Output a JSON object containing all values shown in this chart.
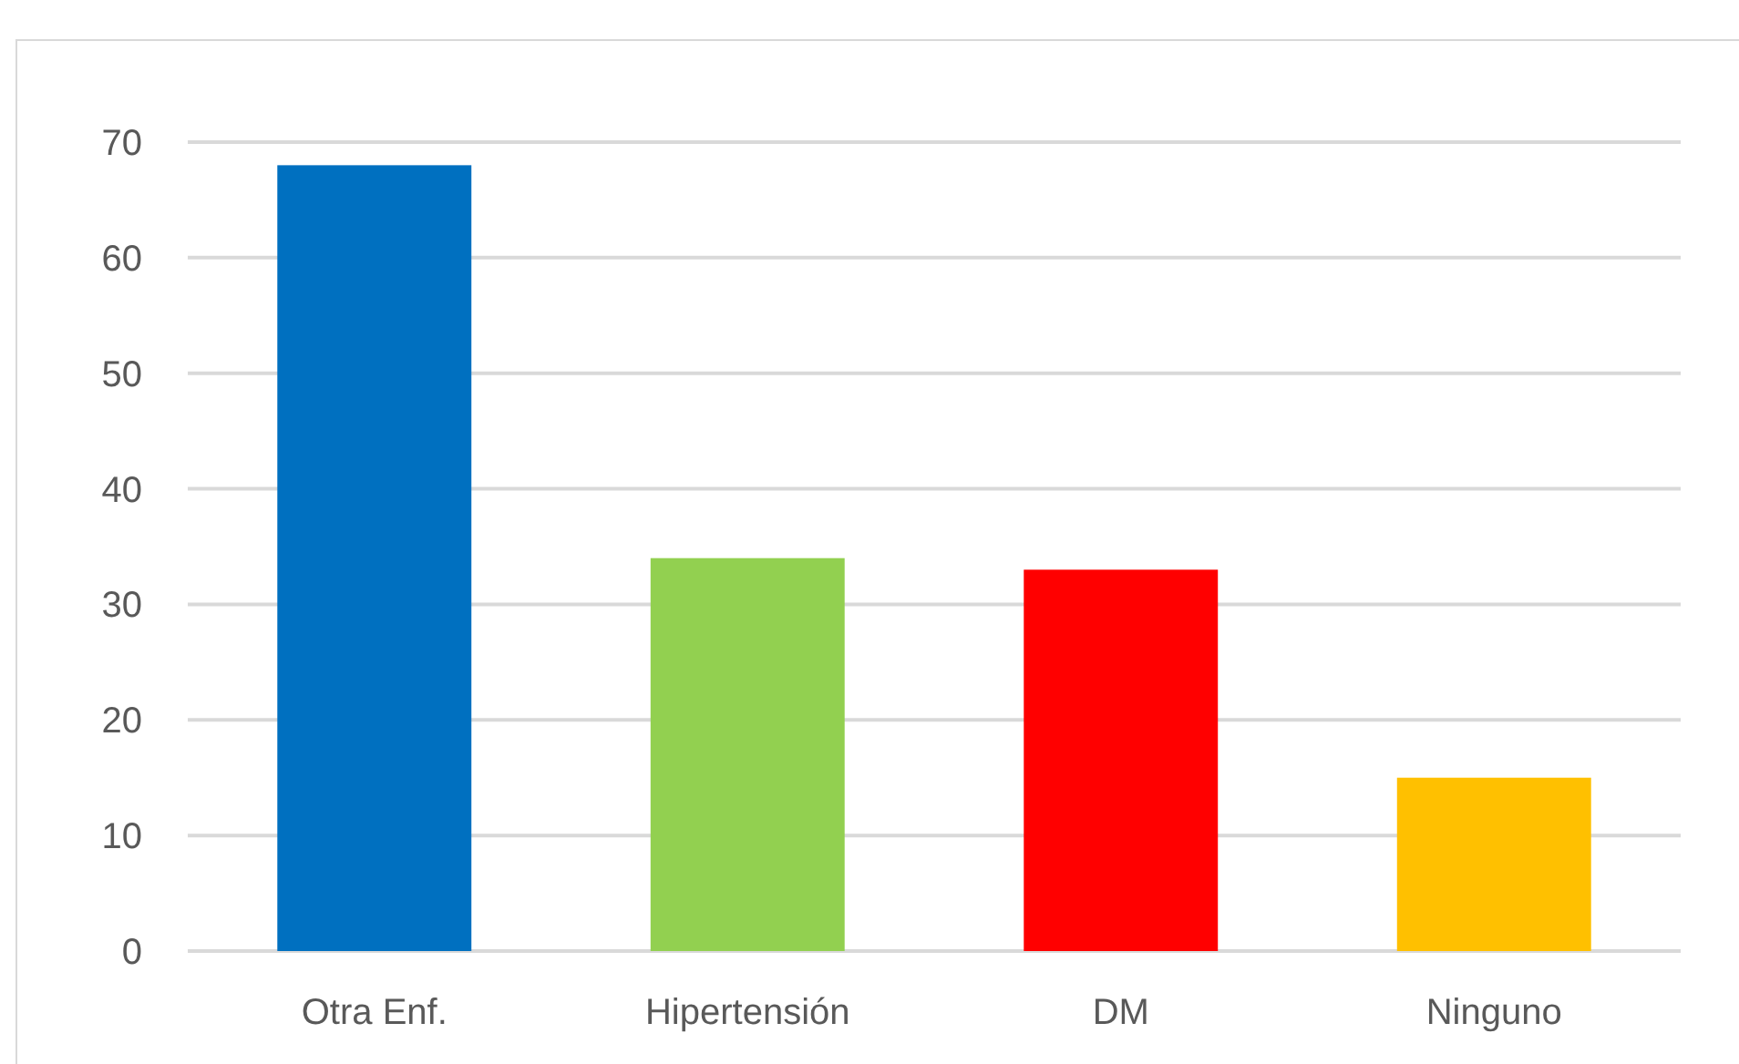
{
  "chart_data": {
    "type": "bar",
    "categories": [
      "Otra Enf.",
      "Hipertensión",
      "DM",
      "Ninguno"
    ],
    "values": [
      68,
      34,
      33,
      15
    ],
    "colors": [
      "#0070c0",
      "#92d050",
      "#ff0000",
      "#ffc000"
    ],
    "ylim": [
      0,
      70
    ],
    "yticks": [
      0,
      10,
      20,
      30,
      40,
      50,
      60,
      70
    ],
    "grid": "y"
  }
}
